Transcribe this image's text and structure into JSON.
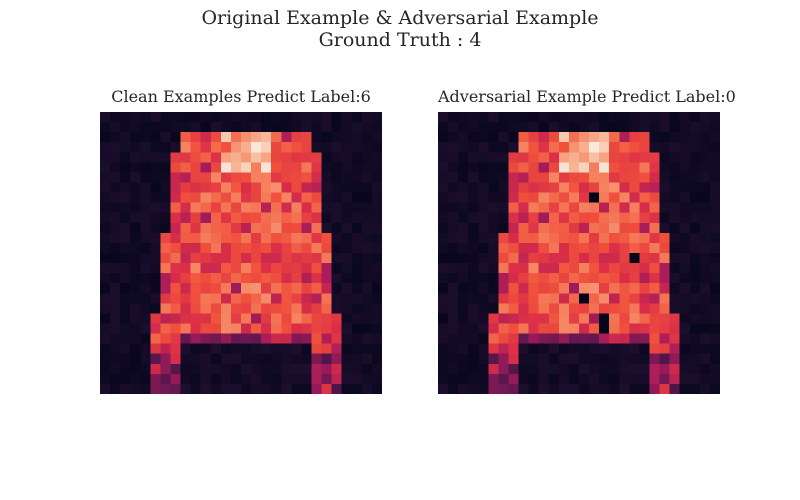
{
  "figure": {
    "title_line1": "Original Example & Adversarial Example",
    "title_line2": "Ground Truth : 4"
  },
  "panels": [
    {
      "title": "Clean Examples Predict Label:6"
    },
    {
      "title": "Adversarial Example Predict Label:0"
    }
  ],
  "chart_data": {
    "type": "heatmap",
    "colormap": "rocket",
    "grid": false,
    "panels": [
      {
        "title": "Clean Examples Predict Label:6",
        "rows": 28,
        "cols": 28
      },
      {
        "title": "Adversarial Example Predict Label:0",
        "rows": 28,
        "cols": 28
      }
    ]
  }
}
